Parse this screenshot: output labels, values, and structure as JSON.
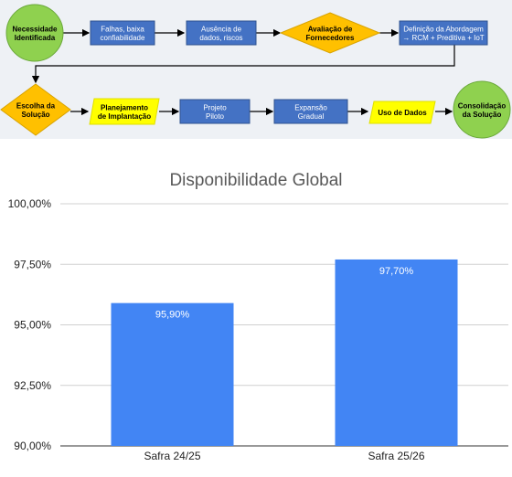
{
  "flowchart": {
    "nodes": [
      {
        "id": "n1",
        "shape": "circle",
        "lines": [
          "Necessidade",
          "Identificada"
        ],
        "fill": "#8fd14f",
        "stroke": "#6aa83a",
        "text_color": "#000000"
      },
      {
        "id": "n2",
        "shape": "rect",
        "lines": [
          "Falhas, baixa",
          "confiabilidade"
        ],
        "fill": "#4472c4",
        "stroke": "#2f528f",
        "text_color": "#ffffff"
      },
      {
        "id": "n3",
        "shape": "rect",
        "lines": [
          "Ausência de",
          "dados, riscos"
        ],
        "fill": "#4472c4",
        "stroke": "#2f528f",
        "text_color": "#ffffff"
      },
      {
        "id": "n4",
        "shape": "diamond",
        "lines": [
          "Avaliação de",
          "Fornecedores"
        ],
        "fill": "#ffc000",
        "stroke": "#d9a300",
        "text_color": "#000000"
      },
      {
        "id": "n5",
        "shape": "rect",
        "lines": [
          "Definição da Abordagem",
          "→ RCM + Preditiva + IoT"
        ],
        "fill": "#4472c4",
        "stroke": "#2f528f",
        "text_color": "#ffffff"
      },
      {
        "id": "n6",
        "shape": "diamond",
        "lines": [
          "Escolha da",
          "Solução"
        ],
        "fill": "#ffc000",
        "stroke": "#d9a300",
        "text_color": "#000000"
      },
      {
        "id": "n7",
        "shape": "parallelogram",
        "lines": [
          "Planejamento",
          "de Implantação"
        ],
        "fill": "#ffff00",
        "stroke": "#e0e000",
        "text_color": "#000000"
      },
      {
        "id": "n8",
        "shape": "rect",
        "lines": [
          "Projeto",
          "Piloto"
        ],
        "fill": "#4472c4",
        "stroke": "#2f528f",
        "text_color": "#ffffff"
      },
      {
        "id": "n9",
        "shape": "rect",
        "lines": [
          "Expansão",
          "Gradual"
        ],
        "fill": "#4472c4",
        "stroke": "#2f528f",
        "text_color": "#ffffff"
      },
      {
        "id": "n10",
        "shape": "parallelogram",
        "lines": [
          "Uso de Dados"
        ],
        "fill": "#ffff00",
        "stroke": "#e0e000",
        "text_color": "#000000"
      },
      {
        "id": "n11",
        "shape": "circle",
        "lines": [
          "Consolidação",
          "da Solução"
        ],
        "fill": "#8fd14f",
        "stroke": "#6aa83a",
        "text_color": "#000000"
      }
    ]
  },
  "chart_data": {
    "type": "bar",
    "title": "Disponibilidade Global",
    "categories": [
      "Safra 24/25",
      "Safra 25/26"
    ],
    "values": [
      95.9,
      97.7
    ],
    "data_labels": [
      "95,90%",
      "97,70%"
    ],
    "ylim": [
      90,
      100
    ],
    "yticks": [
      90,
      92.5,
      95,
      97.5,
      100
    ],
    "ytick_labels": [
      "90,00%",
      "92,50%",
      "95,00%",
      "97,50%",
      "100,00%"
    ],
    "bar_color": "#4285f4",
    "grid": true,
    "legend": "none"
  }
}
